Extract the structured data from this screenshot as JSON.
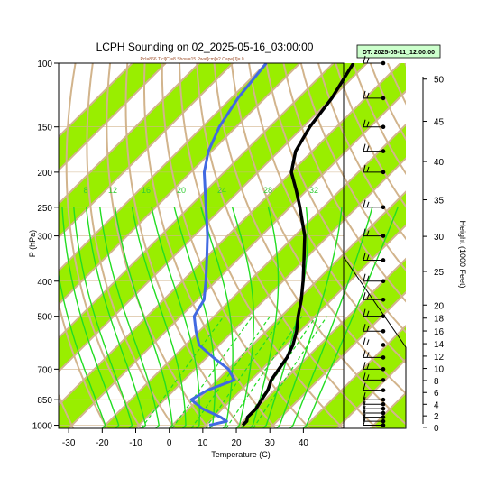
{
  "chart_data": {
    "type": "skew-t",
    "title": "LCPH Sounding on 02_2025-05-16_03:00:00",
    "subtitle": "Pcl=866 Tlcl[C]=8 Show=15 Pwat[cm]=2 Cape[J]= 0",
    "datetime_box": "DT: 2025-05-11_12:00:00",
    "xlabel": "Temperature (C)",
    "ylabel": "P (hPa)",
    "ylabel_right": "Height (1000 Feet)",
    "x_ticks": [
      -30,
      -20,
      -10,
      0,
      10,
      20,
      30,
      40
    ],
    "x_tick_labels": [
      "-30",
      "-20",
      "-10",
      "0",
      "10",
      "20",
      "30",
      "40"
    ],
    "xlim": [
      -33,
      52
    ],
    "ylim": [
      1020,
      100
    ],
    "y_scale": "log",
    "p_ticks": [
      1000,
      850,
      700,
      500,
      400,
      300,
      250,
      200,
      150,
      100
    ],
    "p_tick_labels": [
      "1000",
      "850",
      "700",
      "500",
      "400",
      "300",
      "250",
      "200",
      "150",
      "100"
    ],
    "height_ticks": [
      0,
      2,
      4,
      6,
      8,
      10,
      12,
      14,
      16,
      18,
      20,
      25,
      30,
      35,
      40,
      45,
      50
    ],
    "height_tick_labels": [
      "0",
      "2",
      "4",
      "6",
      "8",
      "10",
      "12",
      "14",
      "16",
      "18",
      "20",
      "25",
      "30",
      "35",
      "40",
      "45",
      "50"
    ],
    "isotherm_labels": [
      {
        "value": -30,
        "text": "-30"
      },
      {
        "value": -20,
        "text": "-20"
      },
      {
        "value": -10,
        "text": "-10"
      },
      {
        "value": 0,
        "text": "0"
      },
      {
        "value": 10,
        "text": "10"
      },
      {
        "value": 20,
        "text": "20"
      },
      {
        "value": 30,
        "text": "30"
      },
      {
        "value": 40,
        "text": "40"
      }
    ],
    "adiabat_labels": [
      "60",
      "80",
      "100",
      "120",
      "140",
      "160"
    ],
    "mixing_ratio_labels": [
      "8",
      "12",
      "16",
      "20",
      "24",
      "28",
      "32"
    ],
    "band_color": "#99ee00",
    "isotherm_color": "#d2b48c",
    "moist_adiabat_color": "#22dd22",
    "dry_adiabat_color": "#22dd22",
    "series": [
      {
        "name": "Temperature",
        "color": "#000000",
        "points": [
          {
            "p": 1000,
            "t": 21
          },
          {
            "p": 975,
            "t": 21
          },
          {
            "p": 950,
            "t": 20
          },
          {
            "p": 900,
            "t": 20
          },
          {
            "p": 850,
            "t": 19
          },
          {
            "p": 800,
            "t": 18
          },
          {
            "p": 750,
            "t": 16
          },
          {
            "p": 700,
            "t": 15
          },
          {
            "p": 650,
            "t": 14
          },
          {
            "p": 600,
            "t": 12
          },
          {
            "p": 550,
            "t": 9
          },
          {
            "p": 500,
            "t": 5
          },
          {
            "p": 450,
            "t": 1
          },
          {
            "p": 400,
            "t": -4
          },
          {
            "p": 350,
            "t": -10
          },
          {
            "p": 300,
            "t": -17
          },
          {
            "p": 250,
            "t": -27
          },
          {
            "p": 225,
            "t": -33
          },
          {
            "p": 200,
            "t": -40
          },
          {
            "p": 175,
            "t": -45
          },
          {
            "p": 150,
            "t": -48
          },
          {
            "p": 125,
            "t": -50
          },
          {
            "p": 100,
            "t": -54
          }
        ]
      },
      {
        "name": "Dewpoint",
        "color": "#4169e1",
        "points": [
          {
            "p": 1000,
            "t": 11
          },
          {
            "p": 975,
            "t": 15
          },
          {
            "p": 950,
            "t": 12
          },
          {
            "p": 900,
            "t": 4
          },
          {
            "p": 850,
            "t": -2
          },
          {
            "p": 800,
            "t": 0
          },
          {
            "p": 750,
            "t": 5
          },
          {
            "p": 700,
            "t": 0
          },
          {
            "p": 650,
            "t": -8
          },
          {
            "p": 600,
            "t": -16
          },
          {
            "p": 550,
            "t": -21
          },
          {
            "p": 500,
            "t": -26
          },
          {
            "p": 450,
            "t": -28
          },
          {
            "p": 400,
            "t": -33
          },
          {
            "p": 350,
            "t": -39
          },
          {
            "p": 300,
            "t": -46
          },
          {
            "p": 250,
            "t": -55
          },
          {
            "p": 200,
            "t": -66
          },
          {
            "p": 175,
            "t": -71
          },
          {
            "p": 150,
            "t": -75
          },
          {
            "p": 125,
            "t": -78
          },
          {
            "p": 100,
            "t": -80
          }
        ]
      }
    ]
  }
}
